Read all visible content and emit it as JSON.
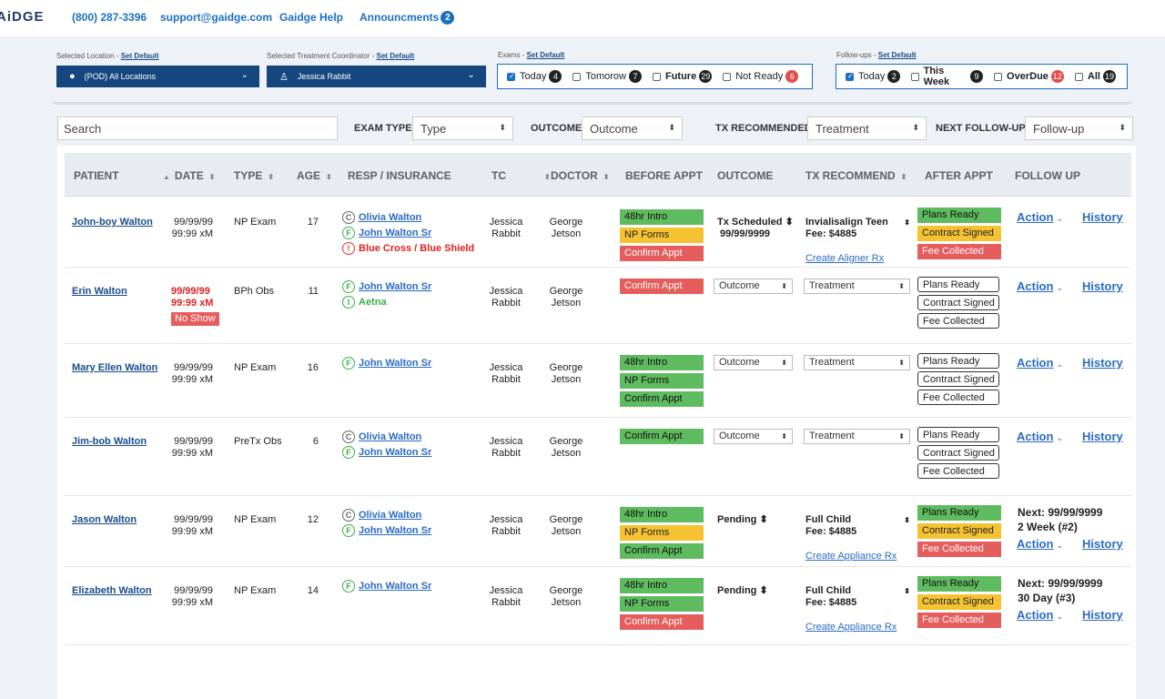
{
  "top": {
    "logo": "AiDGE",
    "phone": "(800) 287-3396",
    "email": "support@gaidge.com",
    "help": "Gaidge Help",
    "announcements": "Announcments",
    "announcements_count": "2"
  },
  "filters": {
    "location_label": "Selected Location - ",
    "tc_label": "Selected Treatment Coordinator - ",
    "exams_label": "Exams - ",
    "followups_label": "Follow-ups - ",
    "set_default": "Set Default",
    "location_value": "(POD) All Locations",
    "tc_value": "Jessica Rabbit",
    "exams": [
      {
        "label": "Today",
        "count": "4",
        "checked": true,
        "red": false
      },
      {
        "label": "Tomorow",
        "count": "7",
        "checked": false,
        "red": false
      },
      {
        "label": "Future",
        "count": "29",
        "checked": false,
        "red": false
      },
      {
        "label": "Not Ready",
        "count": "6",
        "checked": false,
        "red": true
      }
    ],
    "followups": [
      {
        "label": "Today",
        "count": "2",
        "checked": true,
        "red": false
      },
      {
        "label": "This Week",
        "count": "9",
        "checked": false,
        "red": false
      },
      {
        "label": "OverDue",
        "count": "12",
        "checked": false,
        "red": true
      },
      {
        "label": "All",
        "count": "19",
        "checked": false,
        "red": false
      }
    ]
  },
  "search": {
    "placeholder": "Search",
    "exam_type_label": "EXAM TYPE",
    "exam_type_value": "Type",
    "outcome_label": "OUTCOME",
    "outcome_value": "Outcome",
    "tx_label": "TX RECOMMENDED",
    "tx_value": "Treatment",
    "followup_label": "NEXT FOLLOW-UP",
    "followup_value": "Follow-up"
  },
  "columns": {
    "patient": "PATIENT",
    "date": "DATE",
    "type": "TYPE",
    "age": "AGE",
    "resp": "RESP / INSURANCE",
    "tc": "TC",
    "doctor": "DOCTOR",
    "before": "BEFORE APPT",
    "outcome": "OUTCOME",
    "tx": "TX RECOMMEND",
    "after": "AFTER APPT",
    "follow": "FOLLOW UP"
  },
  "rows": [
    {
      "patient": "John-boy Walton",
      "date1": "99/99/99",
      "date2": "99:99 xM",
      "date_red": false,
      "no_show": "",
      "type": "NP Exam",
      "age": "17",
      "insurance": [
        {
          "icon": "C",
          "kind": "c",
          "text": "Olivia Walton",
          "style": "link"
        },
        {
          "icon": "F",
          "kind": "f",
          "text": "John Walton Sr",
          "style": "link"
        },
        {
          "icon": "!",
          "kind": "ired",
          "text": "Blue Cross / Blue Shield",
          "style": "red"
        }
      ],
      "tc1": "Jessica",
      "tc2": "Rabbit",
      "doc1": "George",
      "doc2": "Jetson",
      "before": [
        {
          "t": "48hr Intro",
          "c": "green"
        },
        {
          "t": "NP Forms",
          "c": "yellow"
        },
        {
          "t": "Confirm Appt",
          "c": "red"
        }
      ],
      "outcome_mode": "text",
      "outcome1": "Tx Scheduled",
      "outcome2": "99/99/9999",
      "tx_mode": "text",
      "tx1": "Invialisalign Teen",
      "tx2": "Fee: $4885",
      "tx_link": "Create Aligner Rx",
      "after": [
        {
          "t": "Plans Ready",
          "c": "green"
        },
        {
          "t": "Contract Signed",
          "c": "yellow"
        },
        {
          "t": "Fee Collected",
          "c": "red"
        }
      ],
      "next1": "",
      "next2": "",
      "action": "Action",
      "history": "History"
    },
    {
      "patient": "Erin Walton",
      "date1": "99/99/99",
      "date2": "99:99 xM",
      "date_red": true,
      "no_show": "No Show",
      "type": "BPh Obs",
      "age": "11",
      "insurance": [
        {
          "icon": "F",
          "kind": "f",
          "text": "John Walton Sr",
          "style": "link"
        },
        {
          "icon": "I",
          "kind": "i",
          "text": "Aetna",
          "style": "green"
        }
      ],
      "tc1": "Jessica",
      "tc2": "Rabbit",
      "doc1": "George",
      "doc2": "Jetson",
      "before": [
        {
          "t": "Confirm Appt",
          "c": "red"
        }
      ],
      "outcome_mode": "select",
      "outcome1": "Outcome",
      "outcome2": "",
      "tx_mode": "select",
      "tx1": "Treatment",
      "tx2": "",
      "tx_link": "",
      "after": [
        {
          "t": "Plans Ready",
          "c": "outline"
        },
        {
          "t": "Contract Signed",
          "c": "outline"
        },
        {
          "t": "Fee Collected",
          "c": "outline"
        }
      ],
      "next1": "",
      "next2": "",
      "action": "Action",
      "history": "History"
    },
    {
      "patient": "Mary Ellen Walton",
      "date1": "99/99/99",
      "date2": "99:99 xM",
      "date_red": false,
      "no_show": "",
      "type": "NP Exam",
      "age": "16",
      "insurance": [
        {
          "icon": "F",
          "kind": "f",
          "text": "John Walton Sr",
          "style": "link"
        }
      ],
      "tc1": "Jessica",
      "tc2": "Rabbit",
      "doc1": "George",
      "doc2": "Jetson",
      "before": [
        {
          "t": "48hr Intro",
          "c": "green"
        },
        {
          "t": "NP Forms",
          "c": "green"
        },
        {
          "t": "Confirm Appt",
          "c": "green"
        }
      ],
      "outcome_mode": "select",
      "outcome1": "Outcome",
      "outcome2": "",
      "tx_mode": "select",
      "tx1": "Treatment",
      "tx2": "",
      "tx_link": "",
      "after": [
        {
          "t": "Plans Ready",
          "c": "outline"
        },
        {
          "t": "Contract Signed",
          "c": "outline"
        },
        {
          "t": "Fee Collected",
          "c": "outline"
        }
      ],
      "next1": "",
      "next2": "",
      "action": "Action",
      "history": "History"
    },
    {
      "patient": "Jim-bob Walton",
      "date1": "99/99/99",
      "date2": "99:99 xM",
      "date_red": false,
      "no_show": "",
      "type": "PreTx Obs",
      "age": "6",
      "insurance": [
        {
          "icon": "C",
          "kind": "c",
          "text": "Olivia Walton",
          "style": "link"
        },
        {
          "icon": "F",
          "kind": "f",
          "text": "John Walton Sr",
          "style": "link"
        }
      ],
      "tc1": "Jessica",
      "tc2": "Rabbit",
      "doc1": "George",
      "doc2": "Jetson",
      "before": [
        {
          "t": "Confirm Appt",
          "c": "green"
        }
      ],
      "outcome_mode": "select",
      "outcome1": "Outcome",
      "outcome2": "",
      "tx_mode": "select",
      "tx1": "Treatment",
      "tx2": "",
      "tx_link": "",
      "after": [
        {
          "t": "Plans Ready",
          "c": "outline"
        },
        {
          "t": "Contract Signed",
          "c": "outline"
        },
        {
          "t": "Fee Collected",
          "c": "outline"
        }
      ],
      "next1": "",
      "next2": "",
      "action": "Action",
      "history": "History"
    },
    {
      "patient": "Jason Walton",
      "date1": "99/99/99",
      "date2": "99:99 xM",
      "date_red": false,
      "no_show": "",
      "type": "NP Exam",
      "age": "12",
      "insurance": [
        {
          "icon": "C",
          "kind": "c",
          "text": "Olivia Walton",
          "style": "link"
        },
        {
          "icon": "F",
          "kind": "f",
          "text": "John Walton Sr",
          "style": "link"
        }
      ],
      "tc1": "Jessica",
      "tc2": "Rabbit",
      "doc1": "George",
      "doc2": "Jetson",
      "before": [
        {
          "t": "48hr Intro",
          "c": "green"
        },
        {
          "t": "NP Forms",
          "c": "yellow"
        },
        {
          "t": "Confirm Appt",
          "c": "green"
        }
      ],
      "outcome_mode": "text",
      "outcome1": "Pending",
      "outcome2": "",
      "tx_mode": "text",
      "tx1": "Full Child",
      "tx2": "Fee: $4885",
      "tx_link": "Create Appliance Rx",
      "after": [
        {
          "t": "Plans Ready",
          "c": "green"
        },
        {
          "t": "Contract Signed",
          "c": "yellow"
        },
        {
          "t": "Fee Collected",
          "c": "red"
        }
      ],
      "next1": "Next: 99/99/9999",
      "next2": "2 Week (#2)",
      "action": "Action",
      "history": "History"
    },
    {
      "patient": "Elizabeth Walton",
      "date1": "99/99/99",
      "date2": "99:99 xM",
      "date_red": false,
      "no_show": "",
      "type": "NP Exam",
      "age": "14",
      "insurance": [
        {
          "icon": "F",
          "kind": "f",
          "text": "John Walton Sr",
          "style": "link"
        }
      ],
      "tc1": "Jessica",
      "tc2": "Rabbit",
      "doc1": "George",
      "doc2": "Jetson",
      "before": [
        {
          "t": "48hr Intro",
          "c": "green"
        },
        {
          "t": "NP Forms",
          "c": "green"
        },
        {
          "t": "Confirm Appt",
          "c": "red"
        }
      ],
      "outcome_mode": "text",
      "outcome1": "Pending",
      "outcome2": "",
      "tx_mode": "text",
      "tx1": "Full Child",
      "tx2": "Fee: $4885",
      "tx_link": "Create Appliance Rx",
      "after": [
        {
          "t": "Plans Ready",
          "c": "green"
        },
        {
          "t": "Contract Signed",
          "c": "yellow"
        },
        {
          "t": "Fee Collected",
          "c": "red"
        }
      ],
      "next1": "Next: 99/99/9999",
      "next2": "30 Day (#3)",
      "action": "Action",
      "history": "History"
    }
  ]
}
